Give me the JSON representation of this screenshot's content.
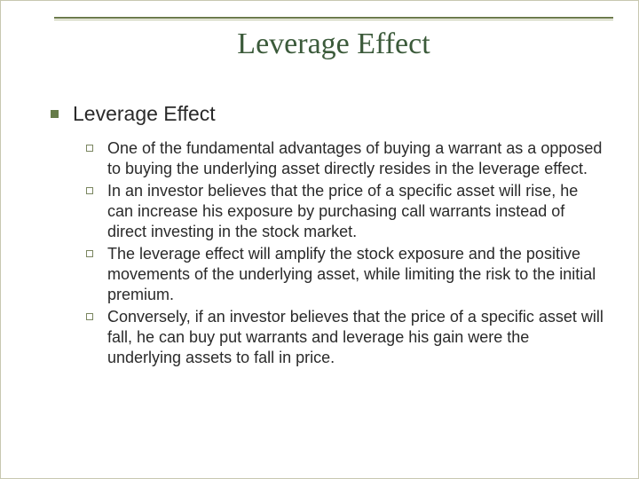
{
  "title": "Leverage Effect",
  "section_heading": "Leverage Effect",
  "bullets": [
    "One of the fundamental advantages of buying a warrant as a opposed to buying the underlying asset directly resides in the leverage effect.",
    "In an investor believes that the price of a specific asset will rise, he can increase his exposure by purchasing call warrants instead of direct investing in the stock market.",
    "The leverage effect will amplify the stock exposure and the positive movements of the underlying asset, while limiting the risk to the initial premium.",
    "Conversely, if an investor believes that the price of a specific asset will fall, he can buy put warrants and leverage his gain were the underlying assets to fall in price."
  ],
  "colors": {
    "title_color": "#3b5a3a",
    "bullet_fill": "#657b48",
    "bullet_outline": "#7a8660",
    "rule_top": "#6b7a4a",
    "rule_bottom": "#bfc4a3",
    "text": "#2a2a2a",
    "background": "#ffffff"
  }
}
